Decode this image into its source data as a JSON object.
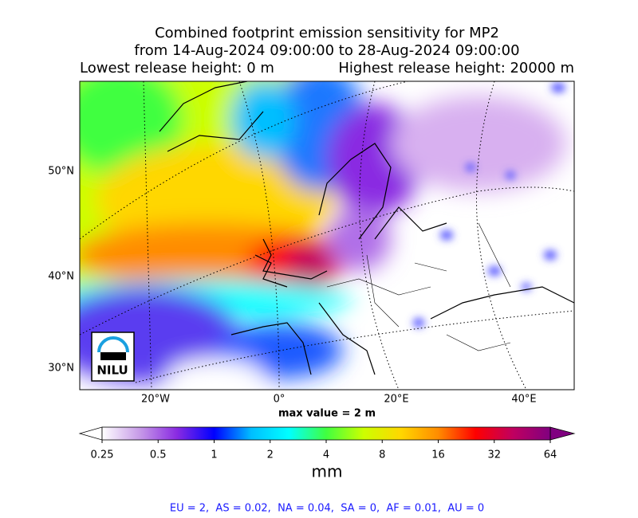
{
  "title_lines": [
    "Combined footprint emission sensitivity for MP2",
    "from 14-Aug-2024 09:00:00 to 28-Aug-2024 09:00:00",
    "Lowest release height: 0 m",
    "Highest release height: 20000 m"
  ],
  "map": {
    "lat_labels": [
      "50°N",
      "40°N",
      "30°N"
    ],
    "lon_labels": [
      "20°W",
      "0°",
      "20°E",
      "40°E"
    ],
    "note": "max value = 2 m",
    "logo": "NILU"
  },
  "colorbar": {
    "ticks": [
      0.25,
      0.5,
      1,
      2,
      4,
      8,
      16,
      32,
      64
    ],
    "log_base": 2,
    "label": "mm",
    "colors": [
      "#ffffff",
      "#c79be8",
      "#8a2be2",
      "#0000ff",
      "#00bfff",
      "#00ffff",
      "#40ff40",
      "#ccff00",
      "#ffd700",
      "#ff8c00",
      "#ff0000",
      "#c00060",
      "#800080"
    ]
  },
  "footer": "EU = 2,  AS = 0.02,  NA = 0.04,  SA = 0,  AF = 0.01,  AU = 0"
}
